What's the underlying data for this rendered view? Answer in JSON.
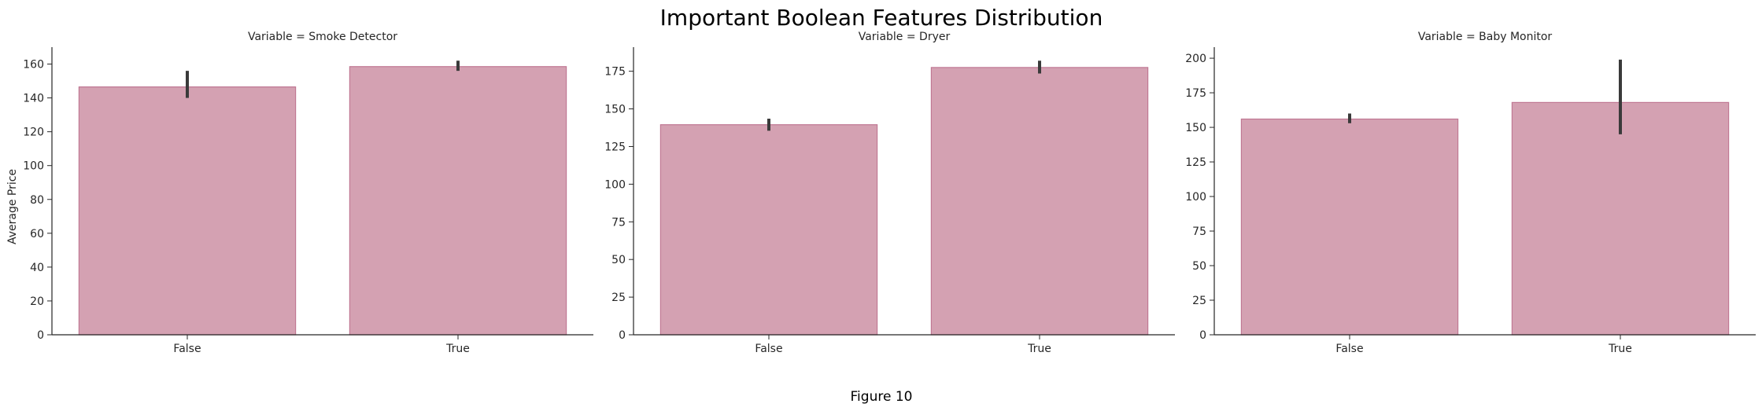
{
  "figure": {
    "suptitle": "Important Boolean Features Distribution",
    "caption": "Figure 10"
  },
  "colors": {
    "bar_fill": "#d4a1b2",
    "bar_edge": "#c07893",
    "error_bar": "#3a3a3a",
    "axis": "#262626"
  },
  "chart_data": [
    {
      "type": "bar",
      "title": "Variable = Smoke Detector",
      "xlabel": "",
      "ylabel": "Average Price",
      "categories": [
        "False",
        "True"
      ],
      "values": [
        146.5,
        158.5
      ],
      "error_low": [
        140,
        156
      ],
      "error_high": [
        156,
        162
      ],
      "ylim": [
        0,
        170
      ],
      "yticks": [
        0,
        20,
        40,
        60,
        80,
        100,
        120,
        140,
        160
      ],
      "grid": false
    },
    {
      "type": "bar",
      "title": "Variable = Dryer",
      "xlabel": "",
      "ylabel": "",
      "categories": [
        "False",
        "True"
      ],
      "values": [
        139.5,
        177.5
      ],
      "error_low": [
        135.5,
        173.5
      ],
      "error_high": [
        143.5,
        182
      ],
      "ylim": [
        0,
        191
      ],
      "yticks": [
        0,
        25,
        50,
        75,
        100,
        125,
        150,
        175
      ],
      "grid": false
    },
    {
      "type": "bar",
      "title": "Variable = Baby Monitor",
      "xlabel": "",
      "ylabel": "",
      "categories": [
        "False",
        "True"
      ],
      "values": [
        156,
        168
      ],
      "error_low": [
        153,
        145
      ],
      "error_high": [
        160,
        199
      ],
      "ylim": [
        0,
        208
      ],
      "yticks": [
        0,
        25,
        50,
        75,
        100,
        125,
        150,
        175,
        200
      ],
      "grid": false
    }
  ]
}
